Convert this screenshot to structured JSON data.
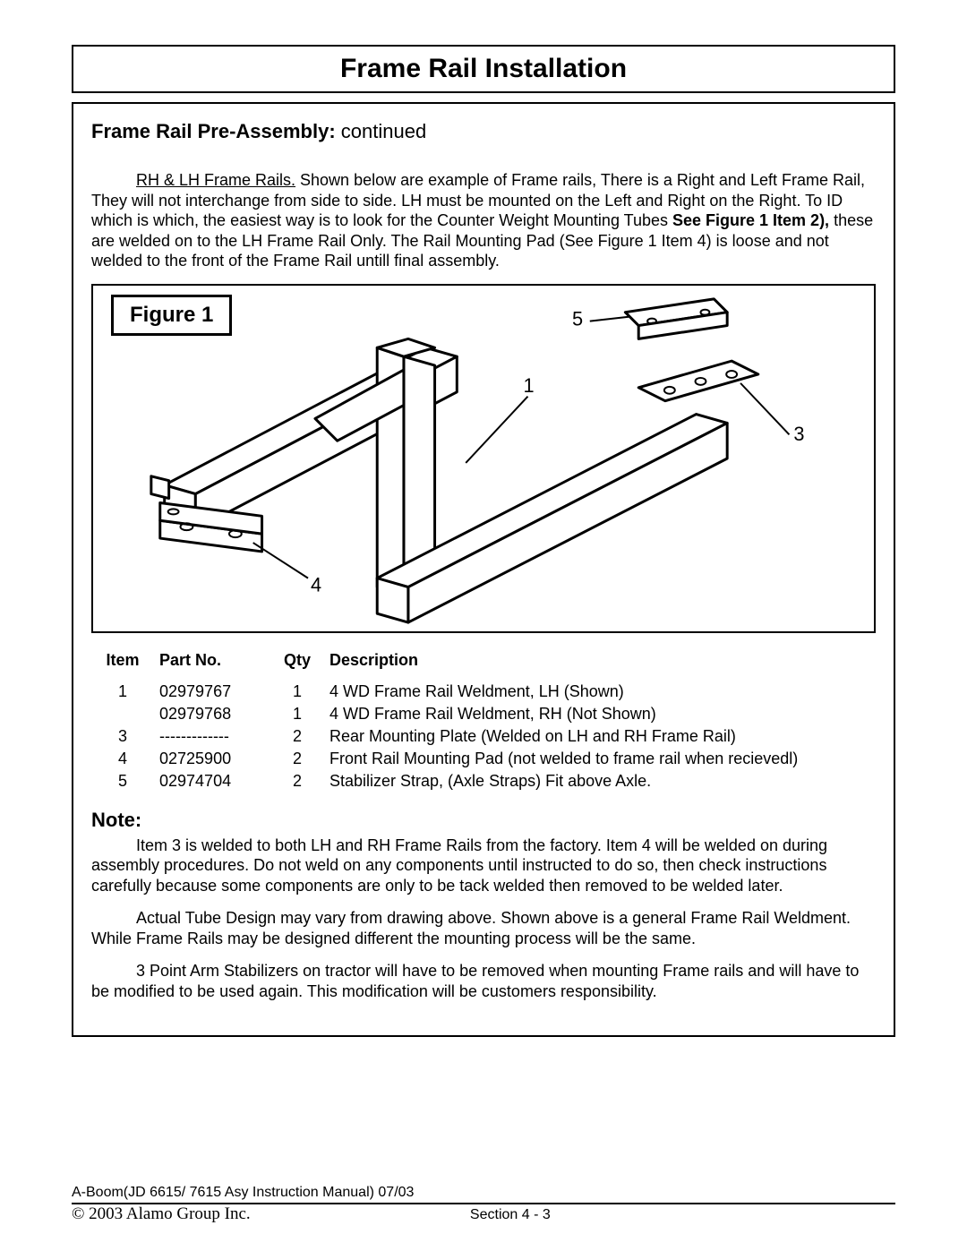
{
  "title": "Frame Rail Installation",
  "subhead_bold": "Frame Rail Pre-Assembly:",
  "subhead_rest": " continued",
  "intro": {
    "lead_underline": "RH & LH Frame Rails.",
    "lead_rest": " Shown below are example of Frame rails, There is a Right and Left Frame Rail, They will not interchange from side to side. LH must be mounted on the Left and Right on the Right. To ID which is which, the easiest way is to look for the Counter Weight Mounting Tubes ",
    "see_fig": "See Figure 1 Item 2),",
    "tail": " these are welded on to the LH Frame Rail Only. The Rail Mounting Pad (See Figure 1 Item 4) is loose and not welded to the front of the Frame Rail untill final assembly."
  },
  "figure_label": "Figure 1",
  "callouts": {
    "c1": "1",
    "c3": "3",
    "c4": "4",
    "c5": "5"
  },
  "table": {
    "headers": {
      "item": "Item",
      "part": "Part No.",
      "qty": "Qty",
      "desc": "Description"
    },
    "rows": [
      {
        "item": "1",
        "part": "02979767",
        "qty": "1",
        "desc": "4 WD Frame Rail Weldment, LH (Shown)"
      },
      {
        "item": "",
        "part": "02979768",
        "qty": "1",
        "desc": "4 WD Frame Rail Weldment, RH (Not Shown)"
      },
      {
        "item": "3",
        "part": "-------------",
        "qty": "2",
        "desc": "Rear Mounting Plate (Welded on LH and RH Frame Rail)"
      },
      {
        "item": "4",
        "part": "02725900",
        "qty": "2",
        "desc": "Front Rail Mounting Pad (not welded to frame rail when recievedl)"
      },
      {
        "item": "5",
        "part": "02974704",
        "qty": "2",
        "desc": "Stabilizer Strap, (Axle Straps) Fit above Axle."
      }
    ]
  },
  "note_head": "Note:",
  "note_p1": "Item 3 is welded to both LH and RH Frame Rails from the factory. Item 4 will be welded on during assembly procedures. Do not weld on any components until instructed to do so, then check instructions carefully because some components are only to be tack welded then removed to be welded later.",
  "note_p2": "Actual Tube Design may vary from drawing above. Shown above is a general Frame Rail Weldment. While Frame Rails may be designed different the mounting process will be the same.",
  "note_p3": "3 Point Arm Stabilizers  on tractor will have to be removed when mounting Frame rails and will have to be modified to be used again. This modification will be customers responsibility.",
  "footer": {
    "line1": "A-Boom(JD 6615/ 7615 Asy Instruction  Manual) 07/03",
    "copyright": "© 2003 Alamo Group Inc.",
    "section": "Section 4 - 3"
  },
  "style": {
    "stroke": "#000000",
    "stroke_width_main": 3,
    "stroke_width_thin": 2,
    "callout_font_size": 22
  }
}
